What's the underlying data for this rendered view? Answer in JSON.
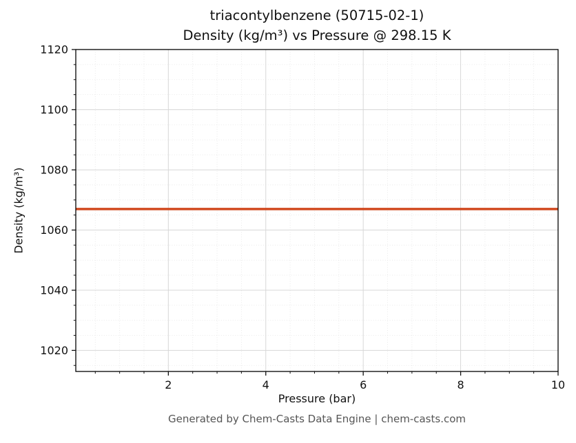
{
  "footer": {
    "text": "Generated by Chem-Casts Data Engine | chem-casts.com"
  },
  "chart_data": {
    "type": "line",
    "title": "triacontylbenzene (50715-02-1)",
    "subtitle": "Density (kg/m³) vs Pressure @ 298.15 K",
    "xlabel": "Pressure (bar)",
    "ylabel": "Density (kg/m³)",
    "xlim": [
      0.1,
      10
    ],
    "ylim": [
      1013,
      1120
    ],
    "xticks": [
      2,
      4,
      6,
      8,
      10
    ],
    "yticks": [
      1020,
      1040,
      1060,
      1080,
      1100,
      1120
    ],
    "x_minor_step": 0.5,
    "y_minor_step": 5,
    "grid": true,
    "legend": "none",
    "series": [
      {
        "name": "density",
        "color": "#d1491f",
        "x": [
          0.1,
          2,
          4,
          6,
          8,
          10
        ],
        "y": [
          1067,
          1067,
          1067,
          1067,
          1067,
          1067
        ]
      }
    ]
  }
}
